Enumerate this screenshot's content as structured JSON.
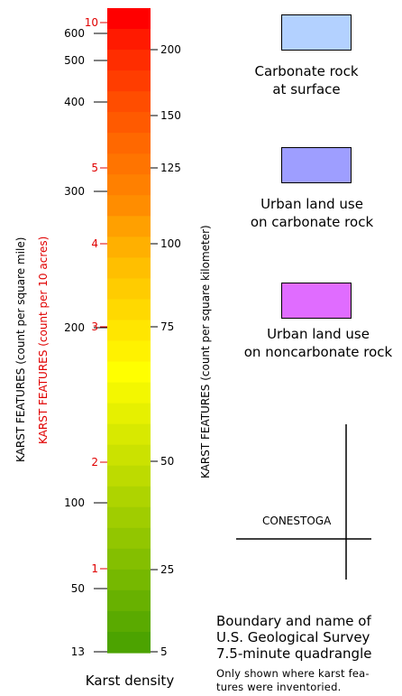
{
  "colorbar": {
    "colors": [
      "#ff0000",
      "#ff1a00",
      "#ff2d00",
      "#ff3d00",
      "#ff4d00",
      "#ff5a00",
      "#ff6800",
      "#ff7400",
      "#ff8000",
      "#ff8d00",
      "#ffa000",
      "#ffb000",
      "#ffbf00",
      "#ffcc00",
      "#ffd900",
      "#ffe600",
      "#fff200",
      "#ffff00",
      "#f3f700",
      "#e6f000",
      "#d8e900",
      "#cbe200",
      "#bddb00",
      "#aed400",
      "#a0cd00",
      "#92c600",
      "#84bf00",
      "#76b800",
      "#68b100",
      "#5aaa00",
      "#4ca300"
    ]
  },
  "axis_left": {
    "title": "KARST FEATURES (count per square mile)",
    "ticks": [
      {
        "label": "600",
        "value": 600
      },
      {
        "label": "500",
        "value": 500
      },
      {
        "label": "400",
        "value": 400
      },
      {
        "label": "300",
        "value": 300
      },
      {
        "label": "200",
        "value": 200
      },
      {
        "label": "100",
        "value": 100
      },
      {
        "label": "50",
        "value": 50
      },
      {
        "label": "13",
        "value": 13
      }
    ]
  },
  "axis_red": {
    "title": "KARST FEATURES (count per 10 acres)",
    "color": "#e00000",
    "ticks": [
      {
        "label": "10",
        "value": 10
      },
      {
        "label": "5",
        "value": 5
      },
      {
        "label": "4",
        "value": 4
      },
      {
        "label": "3",
        "value": 3
      },
      {
        "label": "2",
        "value": 2
      },
      {
        "label": "1",
        "value": 1
      }
    ]
  },
  "axis_right": {
    "title": "KARST FEATURES (count per square kilometer)",
    "ticks": [
      {
        "label": "200",
        "value": 200
      },
      {
        "label": "150",
        "value": 150
      },
      {
        "label": "125",
        "value": 125
      },
      {
        "label": "100",
        "value": 100
      },
      {
        "label": "75",
        "value": 75
      },
      {
        "label": "50",
        "value": 50
      },
      {
        "label": "25",
        "value": 25
      },
      {
        "label": "5",
        "value": 5
      }
    ]
  },
  "colorbar_caption": "Karst density",
  "legend_items": [
    {
      "label_line1": "Carbonate rock",
      "label_line2": "at surface",
      "color": "#b3d1ff"
    },
    {
      "label_line1": "Urban land use",
      "label_line2": "on carbonate rock",
      "color": "#9e9eff"
    },
    {
      "label_line1": "Urban land use",
      "label_line2": "on noncarbonate rock",
      "color": "#e06cff"
    }
  ],
  "quadrangle": {
    "name": "CONESTOGA",
    "title_line1": "Boundary and name of",
    "title_line2": "U.S. Geological Survey",
    "title_line3": "7.5-minute quadrangle",
    "note_line1": "Only shown where karst fea-",
    "note_line2": "tures were inventoried."
  }
}
